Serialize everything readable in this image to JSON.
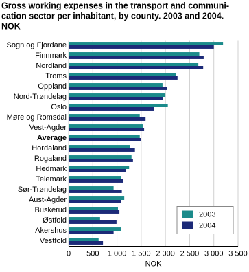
{
  "chart_data": {
    "type": "hbar",
    "title": [
      "Gross working expenses in the transport and communi-",
      "cation sector per inhabitant, by county. 2003 and 2004.",
      "NOK"
    ],
    "categories": [
      "Sogn og Fjordane",
      "Finnmark",
      "Nordland",
      "Troms",
      "Oppland",
      "Nord-Trøndelag",
      "Oslo",
      "Møre og Romsdal",
      "Vest-Agder",
      "Average",
      "Hordaland",
      "Rogaland",
      "Hedmark",
      "Telemark",
      "Sør-Trøndelag",
      "Aust-Agder",
      "Buskerud",
      "Østfold",
      "Akershus",
      "Vestfold"
    ],
    "highlight": "Average",
    "series": [
      {
        "name": "2003",
        "color": "#1b8b8b",
        "values": [
          3190,
          2700,
          2680,
          2220,
          1940,
          2000,
          2050,
          1470,
          1530,
          1470,
          1270,
          1300,
          1250,
          1080,
          930,
          1150,
          1020,
          650,
          1080,
          620
        ]
      },
      {
        "name": "2004",
        "color": "#1c2a78",
        "values": [
          3000,
          2790,
          2780,
          2250,
          2030,
          1950,
          1770,
          1590,
          1560,
          1490,
          1370,
          1330,
          1190,
          1130,
          1100,
          1080,
          1050,
          990,
          930,
          710
        ]
      }
    ],
    "xlabel": "NOK",
    "xlim": [
      0,
      3500
    ],
    "xticks": [
      0,
      500,
      {
        "value": 1000,
        "label": "1 000"
      },
      {
        "value": 1500,
        "label": "1 500"
      },
      {
        "value": 2000,
        "label": "2 000"
      },
      {
        "value": 2500,
        "label": "2 500"
      },
      {
        "value": 3000,
        "label": "3 000"
      },
      {
        "value": 3500,
        "label": "3 500"
      }
    ],
    "grid": true,
    "legend": "lower right"
  }
}
